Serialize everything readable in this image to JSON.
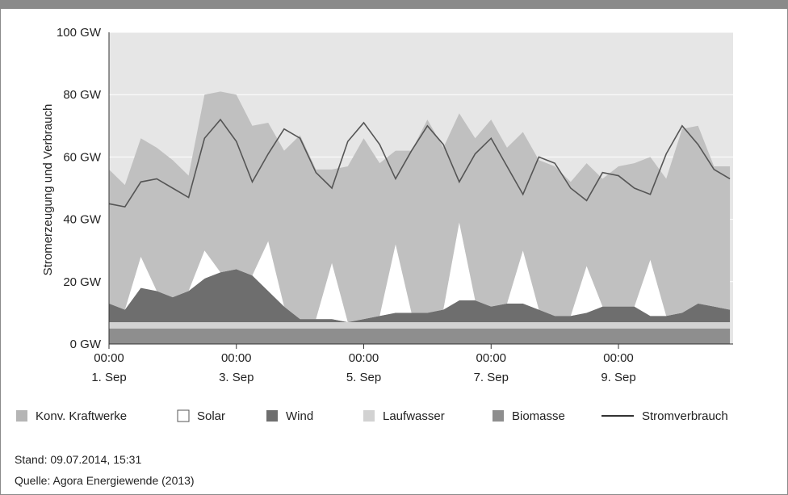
{
  "footer": {
    "stand": "Stand: 09.07.2014, 15:31",
    "quelle": "Quelle: Agora Energiewende (2013)"
  },
  "chart_data": {
    "type": "area",
    "ylabel": "Stromerzeugung und Verbrauch",
    "ylim": [
      0,
      100
    ],
    "yticks": [
      "0 GW",
      "20 GW",
      "40 GW",
      "60 GW",
      "80 GW",
      "100 GW"
    ],
    "xlim": [
      0,
      9.8
    ],
    "x_tick_labels": [
      {
        "x": 0,
        "time": "00:00",
        "date": "1. Sep"
      },
      {
        "x": 2,
        "time": "00:00",
        "date": "3. Sep"
      },
      {
        "x": 4,
        "time": "00:00",
        "date": "5. Sep"
      },
      {
        "x": 6,
        "time": "00:00",
        "date": "7. Sep"
      },
      {
        "x": 8,
        "time": "00:00",
        "date": "9. Sep"
      }
    ],
    "grid": true,
    "legend_position": "bottom",
    "x_days": [
      0,
      0.25,
      0.5,
      0.75,
      1,
      1.25,
      1.5,
      1.75,
      2,
      2.25,
      2.5,
      2.75,
      3,
      3.25,
      3.5,
      3.75,
      4,
      4.25,
      4.5,
      4.75,
      5,
      5.25,
      5.5,
      5.75,
      6,
      6.25,
      6.5,
      6.75,
      7,
      7.25,
      7.5,
      7.75,
      8,
      8.25,
      8.5,
      8.75,
      9,
      9.25,
      9.5,
      9.75
    ],
    "series": [
      {
        "name": "Biomasse",
        "color": "#8e8e8e",
        "values": [
          5,
          5,
          5,
          5,
          5,
          5,
          5,
          5,
          5,
          5,
          5,
          5,
          5,
          5,
          5,
          5,
          5,
          5,
          5,
          5,
          5,
          5,
          5,
          5,
          5,
          5,
          5,
          5,
          5,
          5,
          5,
          5,
          5,
          5,
          5,
          5,
          5,
          5,
          5,
          5
        ]
      },
      {
        "name": "Laufwasser",
        "color": "#d2d2d2",
        "values": [
          2,
          2,
          2,
          2,
          2,
          2,
          2,
          2,
          2,
          2,
          2,
          2,
          2,
          2,
          2,
          2,
          2,
          2,
          2,
          2,
          2,
          2,
          2,
          2,
          2,
          2,
          2,
          2,
          2,
          2,
          2,
          2,
          2,
          2,
          2,
          2,
          2,
          2,
          2,
          2
        ]
      },
      {
        "name": "Wind",
        "color": "#6e6e6e",
        "values": [
          6,
          4,
          11,
          10,
          8,
          10,
          14,
          16,
          17,
          15,
          10,
          5,
          1,
          1,
          1,
          0,
          1,
          2,
          3,
          3,
          3,
          4,
          7,
          7,
          5,
          6,
          6,
          4,
          2,
          2,
          3,
          5,
          5,
          5,
          2,
          2,
          3,
          6,
          5,
          4
        ]
      },
      {
        "name": "Solar",
        "color": "#ffffff",
        "values": [
          0,
          0,
          10,
          0,
          0,
          0,
          9,
          0,
          0,
          0,
          16,
          0,
          0,
          0,
          18,
          0,
          0,
          0,
          22,
          0,
          0,
          0,
          25,
          0,
          0,
          0,
          17,
          0,
          0,
          0,
          15,
          0,
          0,
          0,
          18,
          0,
          0,
          0,
          0,
          0
        ]
      },
      {
        "name": "Konv. Kraftwerke",
        "color": "#c0c0c0",
        "values": [
          43,
          40,
          38,
          46,
          44,
          37,
          50,
          58,
          56,
          48,
          38,
          50,
          59,
          48,
          30,
          50,
          58,
          49,
          30,
          52,
          62,
          52,
          35,
          52,
          60,
          50,
          38,
          48,
          48,
          43,
          33,
          41,
          45,
          46,
          33,
          44,
          59,
          57,
          45,
          46
        ]
      },
      {
        "name": "Stromverbrauch",
        "color": "#555555",
        "line": true,
        "values": [
          45,
          44,
          52,
          53,
          50,
          47,
          66,
          72,
          65,
          52,
          61,
          69,
          66,
          55,
          50,
          65,
          71,
          64,
          53,
          62,
          70,
          64,
          52,
          61,
          66,
          57,
          48,
          60,
          58,
          50,
          46,
          55,
          54,
          50,
          48,
          61,
          70,
          64,
          56,
          53
        ]
      }
    ]
  },
  "legend": [
    {
      "label": "Konv. Kraftwerke",
      "color": "#b5b5b5",
      "swatch": "box"
    },
    {
      "label": "Solar",
      "color": "#ffffff",
      "swatch": "box-outline"
    },
    {
      "label": "Wind",
      "color": "#6e6e6e",
      "swatch": "box"
    },
    {
      "label": "Laufwasser",
      "color": "#d2d2d2",
      "swatch": "box"
    },
    {
      "label": "Biomasse",
      "color": "#8e8e8e",
      "swatch": "box"
    },
    {
      "label": "Stromverbrauch",
      "color": "#333333",
      "swatch": "line"
    }
  ]
}
